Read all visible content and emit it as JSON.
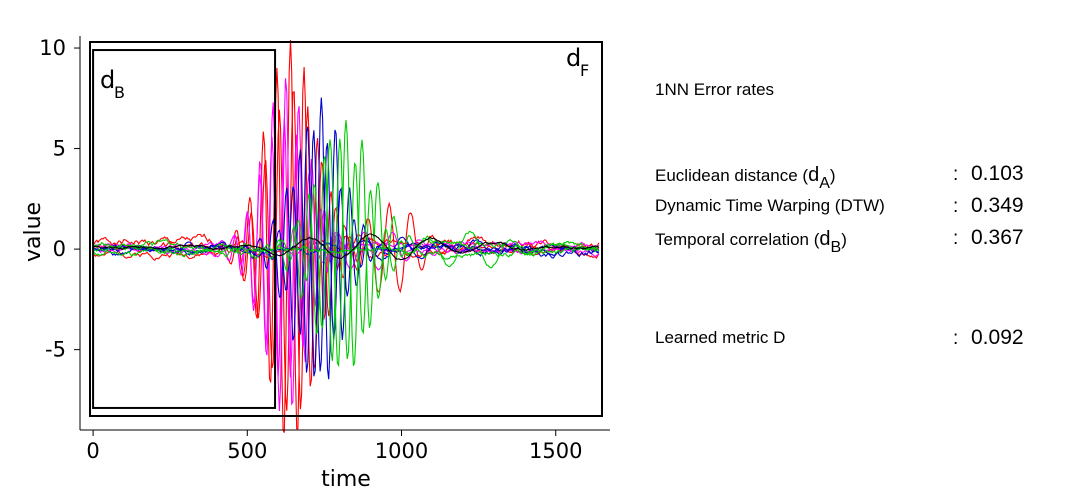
{
  "chart_data": {
    "type": "line",
    "xlabel": "time",
    "ylabel": "value",
    "xlim": [
      -10,
      1650
    ],
    "ylim": [
      -8.3,
      10.3
    ],
    "xticks": [
      0,
      500,
      1000,
      1500
    ],
    "xtick_labels": [
      "0",
      "500",
      "1000",
      "1500"
    ],
    "yticks": [
      -5,
      0,
      5,
      10
    ],
    "ytick_labels": [
      "-5",
      "0",
      "5",
      "10"
    ],
    "grid": false,
    "region_box": {
      "label_main": "d",
      "label_sub": "B",
      "x_range": [
        0,
        590
      ],
      "y_range": [
        -7.9,
        9.9
      ]
    },
    "region_right_label": {
      "main": "d",
      "sub": "F"
    },
    "series": [
      {
        "color": "#ff0000",
        "peak_t": 640,
        "amp": 10.2,
        "freq": 44,
        "decay": 110,
        "base": 0.3,
        "noise": 0.25,
        "seed": 1
      },
      {
        "color": "#ff0000",
        "peak_t": 650,
        "amp": 8.2,
        "freq": 46,
        "decay": 120,
        "base": -0.2,
        "noise": 0.2,
        "seed": 2
      },
      {
        "color": "#ff0000",
        "peak_t": 960,
        "amp": 2.3,
        "freq": 70,
        "decay": 120,
        "base": 0.1,
        "noise": 0.2,
        "seed": 3
      },
      {
        "color": "#ff00ff",
        "peak_t": 625,
        "amp": 8.5,
        "freq": 42,
        "decay": 100,
        "base": 0.2,
        "noise": 0.15,
        "seed": 4
      },
      {
        "color": "#ff00ff",
        "peak_t": 620,
        "amp": 6.5,
        "freq": 40,
        "decay": 110,
        "base": -0.1,
        "noise": 0.15,
        "seed": 5
      },
      {
        "color": "#ff00ff",
        "peak_t": 880,
        "amp": 1.0,
        "freq": 90,
        "decay": 220,
        "base": 0.0,
        "noise": 0.1,
        "seed": 6
      },
      {
        "color": "#0000cc",
        "peak_t": 740,
        "amp": 7.2,
        "freq": 46,
        "decay": 100,
        "base": 0.1,
        "noise": 0.2,
        "seed": 7
      },
      {
        "color": "#0000cc",
        "peak_t": 715,
        "amp": 6.2,
        "freq": 44,
        "decay": 110,
        "base": -0.1,
        "noise": 0.2,
        "seed": 8
      },
      {
        "color": "#0000cc",
        "peak_t": 1000,
        "amp": 0.5,
        "freq": 120,
        "decay": 300,
        "base": 0.0,
        "noise": 0.15,
        "seed": 9
      },
      {
        "color": "#00cc00",
        "peak_t": 820,
        "amp": 6.3,
        "freq": 52,
        "decay": 120,
        "base": 0.2,
        "noise": 0.2,
        "seed": 10
      },
      {
        "color": "#00cc00",
        "peak_t": 800,
        "amp": 5.5,
        "freq": 50,
        "decay": 130,
        "base": -0.2,
        "noise": 0.2,
        "seed": 11
      },
      {
        "color": "#00cc00",
        "peak_t": 1220,
        "amp": 0.9,
        "freq": 140,
        "decay": 180,
        "base": 0.0,
        "noise": 0.15,
        "seed": 12
      },
      {
        "color": "#000000",
        "peak_t": 900,
        "amp": 0.6,
        "freq": 200,
        "decay": 350,
        "base": 0.1,
        "noise": 0.08,
        "seed": 13
      }
    ]
  },
  "panel": {
    "title": "1NN  Error rates",
    "rows": [
      {
        "label": "Euclidean distance (",
        "sym": "d",
        "sub": "A",
        "close": ")",
        "colon": ":",
        "value": "0.103"
      },
      {
        "label": "Dynamic Time Warping (DTW)",
        "sym": "",
        "sub": "",
        "close": "",
        "colon": ":",
        "value": "0.349"
      },
      {
        "label": "Temporal correlation (",
        "sym": "d",
        "sub": "B",
        "close": ")",
        "colon": ":",
        "value": "0.367"
      },
      {
        "label": "Learned metric D",
        "sym": "",
        "sub": "",
        "close": "",
        "colon": ":",
        "value": "0.092"
      }
    ]
  }
}
